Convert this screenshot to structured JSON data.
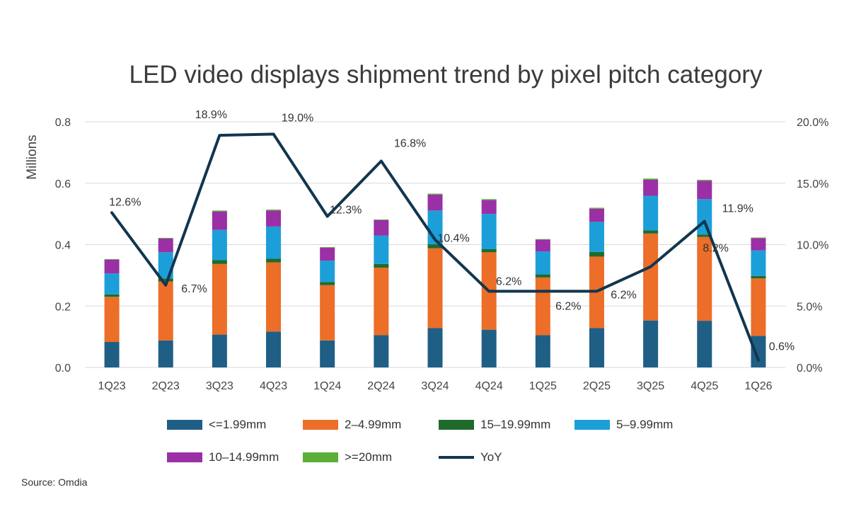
{
  "title": "LED video displays shipment trend by pixel pitch category",
  "source": "Source: Omdia",
  "chart_data": {
    "type": "bar",
    "stacked": true,
    "title": "LED video displays shipment trend by pixel pitch category",
    "ylabel": "Millions",
    "ylim": [
      0,
      0.8
    ],
    "y_ticks": [
      "0.0",
      "0.2",
      "0.4",
      "0.6",
      "0.8"
    ],
    "y2lim": [
      0,
      20
    ],
    "y2_ticks": [
      "0.0%",
      "5.0%",
      "10.0%",
      "15.0%",
      "20.0%"
    ],
    "categories": [
      "1Q23",
      "2Q23",
      "3Q23",
      "4Q23",
      "1Q24",
      "2Q24",
      "3Q24",
      "4Q24",
      "1Q25",
      "2Q25",
      "3Q25",
      "4Q25",
      "1Q26"
    ],
    "series": [
      {
        "name": "<=1.99mm",
        "color": "#1f5f86",
        "values": [
          0.083,
          0.088,
          0.107,
          0.117,
          0.088,
          0.105,
          0.128,
          0.123,
          0.105,
          0.128,
          0.153,
          0.152,
          0.103
        ]
      },
      {
        "name": "2–4.99mm",
        "color": "#ec6e28",
        "values": [
          0.147,
          0.192,
          0.23,
          0.225,
          0.18,
          0.22,
          0.26,
          0.252,
          0.188,
          0.233,
          0.283,
          0.273,
          0.187
        ]
      },
      {
        "name": "15–19.99mm",
        "color": "#1e6b2c",
        "values": [
          0.008,
          0.01,
          0.013,
          0.012,
          0.01,
          0.012,
          0.013,
          0.01,
          0.01,
          0.015,
          0.01,
          0.008,
          0.008
        ]
      },
      {
        "name": "5–9.99mm",
        "color": "#1c9fd8",
        "values": [
          0.068,
          0.085,
          0.098,
          0.105,
          0.07,
          0.093,
          0.11,
          0.115,
          0.075,
          0.098,
          0.113,
          0.115,
          0.083
        ]
      },
      {
        "name": "10–14.99mm",
        "color": "#9b2fa5",
        "values": [
          0.045,
          0.045,
          0.06,
          0.052,
          0.042,
          0.05,
          0.052,
          0.045,
          0.038,
          0.043,
          0.052,
          0.06,
          0.04
        ]
      },
      {
        "name": ">=20mm",
        "color": "#5bae38",
        "values": [
          0.002,
          0.002,
          0.003,
          0.003,
          0.002,
          0.002,
          0.003,
          0.003,
          0.002,
          0.003,
          0.004,
          0.003,
          0.002
        ]
      }
    ],
    "line_series": {
      "name": "YoY",
      "color": "#11364f",
      "values": [
        12.6,
        6.7,
        18.9,
        19.0,
        12.3,
        16.8,
        10.4,
        6.2,
        6.2,
        6.2,
        8.2,
        11.9,
        0.6
      ],
      "labels": [
        "12.6%",
        "6.7%",
        "18.9%",
        "19.0%",
        "12.3%",
        "16.8%",
        "10.4%",
        "6.2%",
        "6.2%",
        "6.2%",
        "8.2%",
        "11.9%",
        "0.6%"
      ]
    },
    "legend": "bottom"
  }
}
